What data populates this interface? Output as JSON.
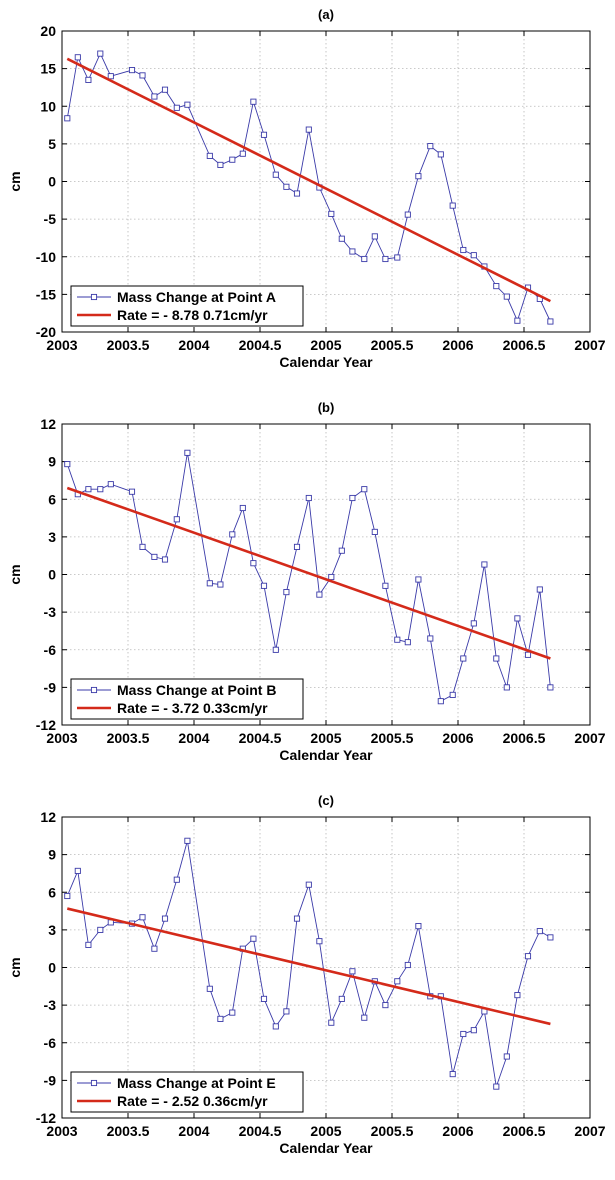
{
  "chart_data": [
    {
      "type": "line",
      "title": "(a)",
      "xlabel": "Calendar Year",
      "ylabel": "cm",
      "xlim": [
        2003,
        2007
      ],
      "ylim": [
        -20,
        20
      ],
      "xticks": [
        "2003",
        "2003.5",
        "2004",
        "2004.5",
        "2005",
        "2005.5",
        "2006",
        "2006.5",
        "2007"
      ],
      "yticks": [
        "20",
        "15",
        "10",
        "5",
        "0",
        "-5",
        "-10",
        "-15",
        "-20"
      ],
      "grid": true,
      "legend_position": "bottom-left",
      "series": [
        {
          "name": "Mass Change at Point A",
          "color": "#3a3aa8",
          "x": [
            2003.04,
            2003.12,
            2003.2,
            2003.29,
            2003.37,
            2003.53,
            2003.61,
            2003.7,
            2003.78,
            2003.87,
            2003.95,
            2004.12,
            2004.2,
            2004.29,
            2004.37,
            2004.45,
            2004.53,
            2004.62,
            2004.7,
            2004.78,
            2004.87,
            2004.95,
            2005.04,
            2005.12,
            2005.2,
            2005.29,
            2005.37,
            2005.45,
            2005.54,
            2005.62,
            2005.7,
            2005.79,
            2005.87,
            2005.96,
            2006.04,
            2006.12,
            2006.2,
            2006.29,
            2006.37,
            2006.45,
            2006.53,
            2006.62,
            2006.7
          ],
          "y": [
            8.4,
            16.5,
            13.5,
            17.0,
            14.0,
            14.8,
            14.1,
            11.3,
            12.2,
            9.8,
            10.2,
            3.4,
            2.2,
            2.9,
            3.7,
            10.6,
            6.2,
            0.9,
            -0.7,
            -1.6,
            6.9,
            -0.8,
            -4.3,
            -7.6,
            -9.3,
            -10.3,
            -7.3,
            -10.3,
            -10.1,
            -4.4,
            0.7,
            4.7,
            3.6,
            -3.2,
            -9.1,
            -9.8,
            -11.3,
            -13.9,
            -15.3,
            -18.5,
            -14.1,
            -15.6,
            -18.6
          ]
        },
        {
          "name": "Rate = - 8.78  0.71cm/yr",
          "color": "#d42a1a",
          "x": [
            2003.04,
            2006.7
          ],
          "y": [
            16.3,
            -15.9
          ]
        }
      ]
    },
    {
      "type": "line",
      "title": "(b)",
      "xlabel": "Calendar Year",
      "ylabel": "cm",
      "xlim": [
        2003,
        2007
      ],
      "ylim": [
        -12,
        12
      ],
      "xticks": [
        "2003",
        "2003.5",
        "2004",
        "2004.5",
        "2005",
        "2005.5",
        "2006",
        "2006.5",
        "2007"
      ],
      "yticks": [
        "12",
        "9",
        "6",
        "3",
        "0",
        "-3",
        "-6",
        "-9",
        "-12"
      ],
      "grid": true,
      "legend_position": "bottom-left",
      "series": [
        {
          "name": "Mass Change at Point B",
          "color": "#3a3aa8",
          "x": [
            2003.04,
            2003.12,
            2003.2,
            2003.29,
            2003.37,
            2003.53,
            2003.61,
            2003.7,
            2003.78,
            2003.87,
            2003.95,
            2004.12,
            2004.2,
            2004.29,
            2004.37,
            2004.45,
            2004.53,
            2004.62,
            2004.7,
            2004.78,
            2004.87,
            2004.95,
            2005.04,
            2005.12,
            2005.2,
            2005.29,
            2005.37,
            2005.45,
            2005.54,
            2005.62,
            2005.7,
            2005.79,
            2005.87,
            2005.96,
            2006.04,
            2006.12,
            2006.2,
            2006.29,
            2006.37,
            2006.45,
            2006.53,
            2006.62,
            2006.7
          ],
          "y": [
            8.8,
            6.4,
            6.8,
            6.8,
            7.2,
            6.6,
            2.2,
            1.4,
            1.2,
            4.4,
            9.7,
            -0.7,
            -0.8,
            3.2,
            5.3,
            0.9,
            -0.9,
            -6.0,
            -1.4,
            2.2,
            6.1,
            -1.6,
            -0.2,
            1.9,
            6.1,
            6.8,
            3.4,
            -0.9,
            -5.2,
            -5.4,
            -0.4,
            -5.1,
            -10.1,
            -9.6,
            -6.7,
            -3.9,
            0.8,
            -6.7,
            -9.0,
            -3.5,
            -6.4,
            -1.2,
            -9.0
          ]
        },
        {
          "name": "Rate = - 3.72  0.33cm/yr",
          "color": "#d42a1a",
          "x": [
            2003.04,
            2006.7
          ],
          "y": [
            6.9,
            -6.7
          ]
        }
      ]
    },
    {
      "type": "line",
      "title": "(c)",
      "xlabel": "Calendar Year",
      "ylabel": "cm",
      "xlim": [
        2003,
        2007
      ],
      "ylim": [
        -12,
        12
      ],
      "xticks": [
        "2003",
        "2003.5",
        "2004",
        "2004.5",
        "2005",
        "2005.5",
        "2006",
        "2006.5",
        "2007"
      ],
      "yticks": [
        "12",
        "9",
        "6",
        "3",
        "0",
        "-3",
        "-6",
        "-9",
        "-12"
      ],
      "grid": true,
      "legend_position": "bottom-left",
      "series": [
        {
          "name": "Mass Change at Point E",
          "color": "#3a3aa8",
          "x": [
            2003.04,
            2003.12,
            2003.2,
            2003.29,
            2003.37,
            2003.53,
            2003.61,
            2003.7,
            2003.78,
            2003.87,
            2003.95,
            2004.12,
            2004.2,
            2004.29,
            2004.37,
            2004.45,
            2004.53,
            2004.62,
            2004.7,
            2004.78,
            2004.87,
            2004.95,
            2005.04,
            2005.12,
            2005.2,
            2005.29,
            2005.37,
            2005.45,
            2005.54,
            2005.62,
            2005.7,
            2005.79,
            2005.87,
            2005.96,
            2006.04,
            2006.12,
            2006.2,
            2006.29,
            2006.37,
            2006.45,
            2006.53,
            2006.62,
            2006.7
          ],
          "y": [
            5.7,
            7.7,
            1.8,
            3.0,
            3.6,
            3.5,
            4.0,
            1.5,
            3.9,
            7.0,
            10.1,
            -1.7,
            -4.1,
            -3.6,
            1.5,
            2.3,
            -2.5,
            -4.7,
            -3.5,
            3.9,
            6.6,
            2.1,
            -4.4,
            -2.5,
            -0.3,
            -4.0,
            -1.1,
            -3.0,
            -1.1,
            0.2,
            3.3,
            -2.3,
            -2.3,
            -8.5,
            -5.3,
            -5.0,
            -3.5,
            -9.5,
            -7.1,
            -2.2,
            0.9,
            2.9,
            2.4
          ]
        },
        {
          "name": "Rate = - 2.52  0.36cm/yr",
          "color": "#d42a1a",
          "x": [
            2003.04,
            2006.7
          ],
          "y": [
            4.7,
            -4.5
          ]
        }
      ]
    }
  ]
}
